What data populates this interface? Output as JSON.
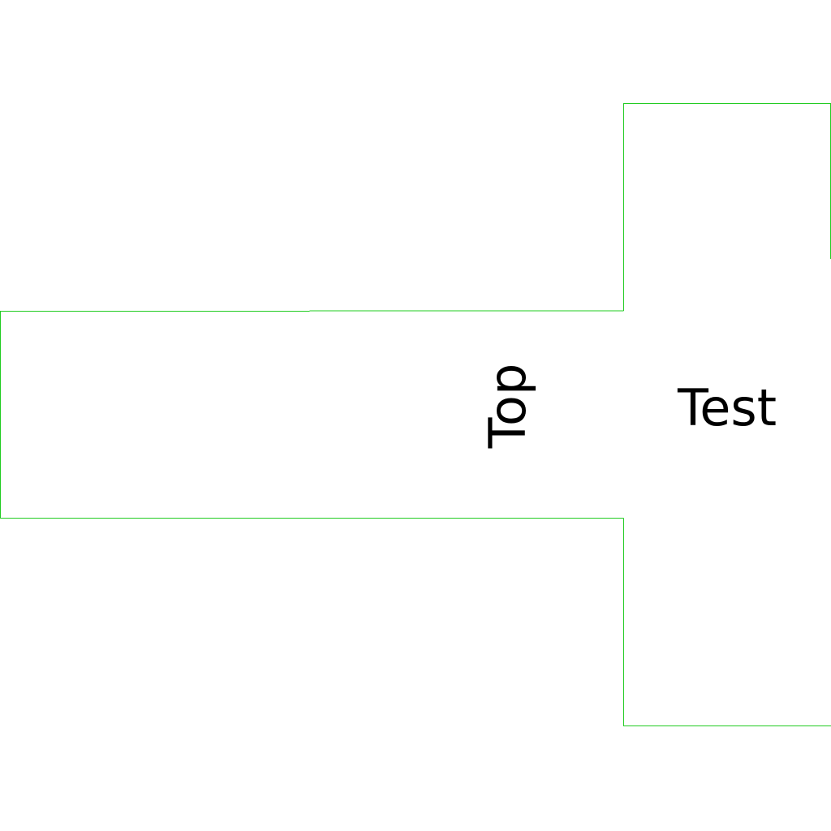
{
  "colors": {
    "background": "#ffffff",
    "outline": "#22cc22",
    "text": "#000000"
  },
  "labels": {
    "top": "Top",
    "test": "Test"
  }
}
